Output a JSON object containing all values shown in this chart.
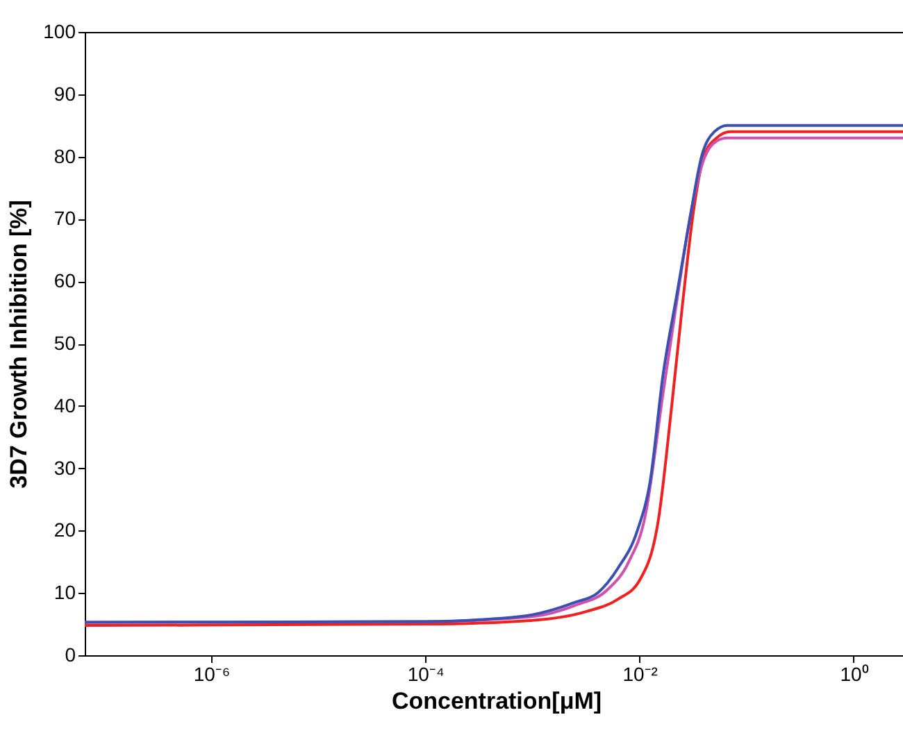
{
  "chart_data": {
    "type": "line",
    "xlabel": "Concentration[μM]",
    "ylabel": "3D7 Growth Inhibition [%]",
    "log": "x",
    "grid": false,
    "legend": false,
    "marker": "none",
    "line_style": "solid",
    "xlim": [
      6.6e-08,
      3.16
    ],
    "ylim": [
      0,
      100
    ],
    "xticks": [
      {
        "value": 1e-06,
        "label": "10⁻⁶"
      },
      {
        "value": 0.0001,
        "label": "10⁻⁴"
      },
      {
        "value": 0.01,
        "label": "10⁻²"
      },
      {
        "value": 1,
        "label": "10⁰"
      }
    ],
    "yticks": [
      0,
      10,
      20,
      30,
      40,
      50,
      60,
      70,
      80,
      90,
      100
    ],
    "series": [
      {
        "color": "#f02020",
        "x": [
          6.6e-08,
          0.0001,
          0.001,
          0.00316,
          0.00631,
          0.01,
          0.0151,
          0.02,
          0.0251,
          0.0324,
          0.0398,
          0.0525,
          0.0708,
          3.16
        ],
        "values": [
          4.8,
          5.0,
          5.6,
          7,
          9,
          12,
          22,
          40,
          56,
          72,
          80,
          83,
          84,
          84
        ]
      },
      {
        "color": "#d050b0",
        "x": [
          6.6e-08,
          0.0001,
          0.001,
          0.00251,
          0.00501,
          0.00794,
          0.0112,
          0.0166,
          0.0224,
          0.0302,
          0.0398,
          0.0525,
          0.0661,
          3.16
        ],
        "values": [
          5.3,
          5.4,
          6.2,
          8,
          10.5,
          15,
          22,
          42,
          57,
          71,
          79.5,
          82.5,
          83,
          83
        ]
      },
      {
        "color": "#3a4fb0",
        "x": [
          6.6e-08,
          0.0001,
          0.000316,
          0.001,
          0.00251,
          0.00407,
          0.00631,
          0.00955,
          0.0126,
          0.0166,
          0.0224,
          0.0295,
          0.038,
          0.0501,
          0.0661,
          3.16
        ],
        "values": [
          5.3,
          5.4,
          5.7,
          6.5,
          8.5,
          10,
          14,
          20,
          28,
          45,
          58,
          70,
          80,
          84,
          85,
          85
        ]
      }
    ]
  }
}
